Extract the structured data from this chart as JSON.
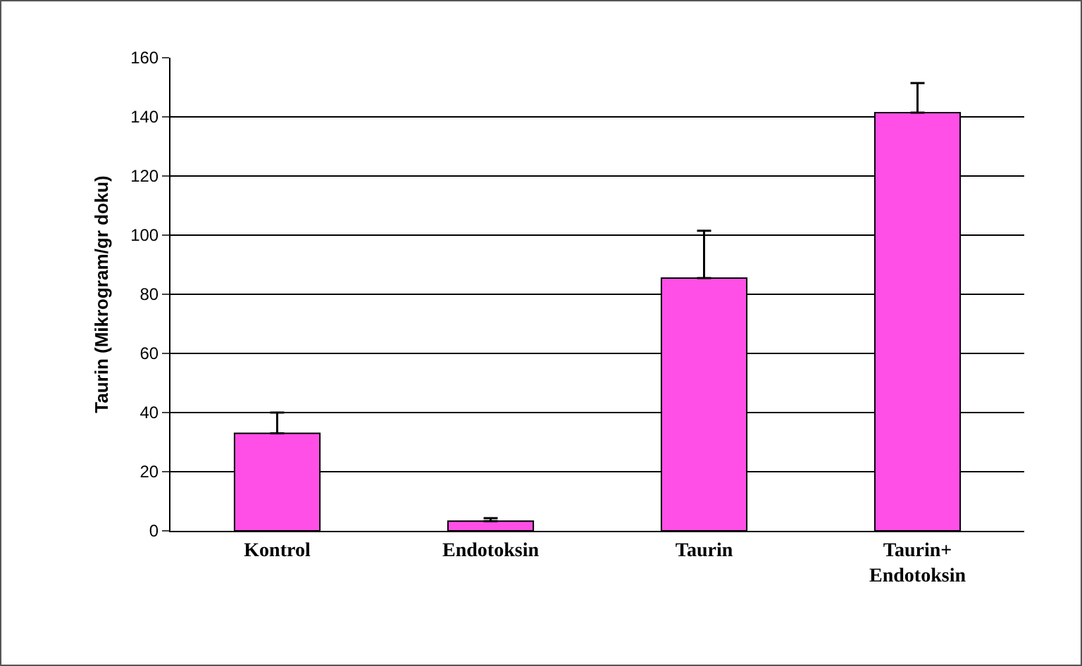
{
  "chart_data": {
    "type": "bar",
    "ylabel": "Taurin (Mikrogram/gr doku)",
    "categories": [
      "Kontrol",
      "Endotoksin",
      "Taurin",
      "Taurin+\nEndotoksin"
    ],
    "values": [
      33,
      3.3,
      85.5,
      141.4
    ],
    "errors": [
      [
        33,
        40
      ],
      [
        3.3,
        4.3
      ],
      [
        85.5,
        101.5
      ],
      [
        141.4,
        151.4
      ]
    ],
    "color": "#ff4fe6",
    "ylim": [
      0,
      160
    ],
    "yticks": [
      0,
      20,
      40,
      60,
      80,
      100,
      120,
      140,
      160
    ],
    "grid": "y"
  }
}
